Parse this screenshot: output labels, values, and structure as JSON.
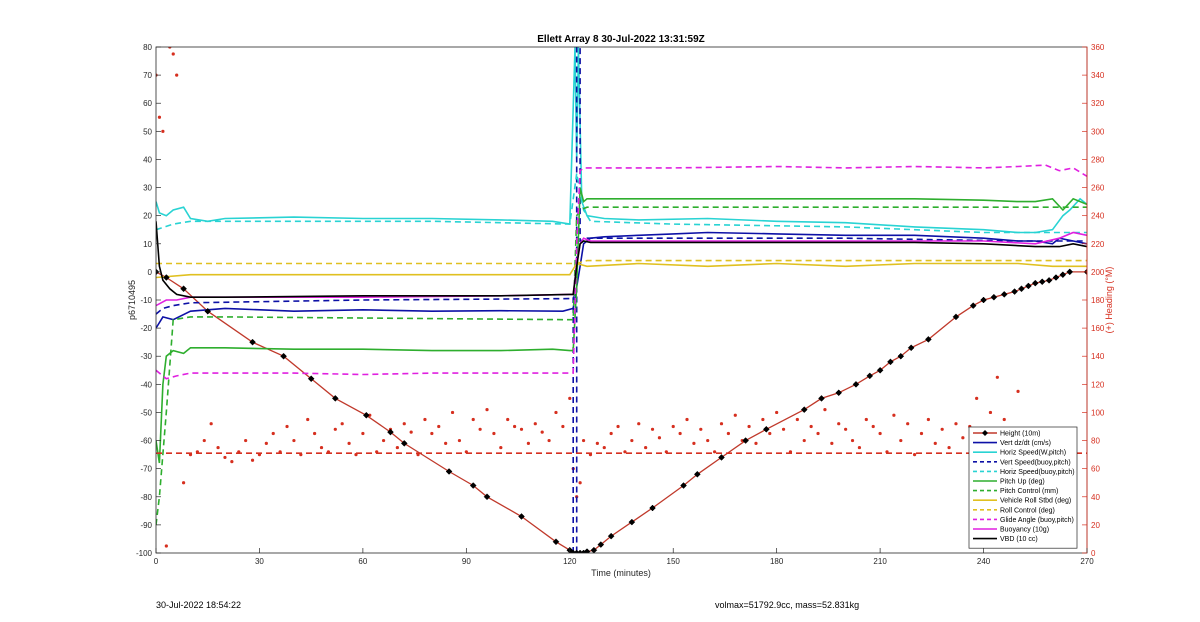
{
  "chart_data": {
    "type": "line",
    "title": "Ellett Array 8 30-Jul-2022 13:31:59Z",
    "xlabel": "Time (minutes)",
    "ylabel": "p6710495",
    "ylabel_right": "(+) Heading (°M)",
    "xlim": [
      0,
      270
    ],
    "ylim": [
      -100,
      80
    ],
    "ylim_right": [
      0,
      360
    ],
    "x_ticks": [
      0,
      30,
      60,
      90,
      120,
      150,
      180,
      210,
      240,
      270
    ],
    "y_ticks": [
      -100,
      -90,
      -80,
      -70,
      -60,
      -50,
      -40,
      -30,
      -20,
      -10,
      0,
      10,
      20,
      30,
      40,
      50,
      60,
      70,
      80
    ],
    "y_ticks_right": [
      0,
      20,
      40,
      60,
      80,
      100,
      120,
      140,
      160,
      180,
      200,
      220,
      240,
      260,
      280,
      300,
      320,
      340,
      360
    ],
    "legend_placement": "bottom-right",
    "series": [
      {
        "name": "Height (10m)",
        "color": "#c0392b",
        "style": "solid",
        "x": [
          0,
          3,
          8,
          15,
          28,
          37,
          45,
          52,
          61,
          68,
          72,
          85,
          92,
          96,
          106,
          116,
          120,
          121,
          122,
          123,
          124,
          125,
          127,
          129,
          132,
          138,
          144,
          153,
          157,
          164,
          171,
          177,
          188,
          193,
          198,
          203,
          207,
          210,
          213,
          216,
          219,
          224,
          232,
          237,
          240,
          243,
          246,
          249,
          251,
          253,
          255,
          257,
          259,
          261,
          263,
          265,
          270
        ],
        "y": [
          0,
          -2,
          -6,
          -14,
          -25,
          -30,
          -38,
          -45,
          -51,
          -57,
          -61,
          -71,
          -76,
          -80,
          -87,
          -96,
          -99,
          -100,
          -100,
          -100,
          -100,
          -99.5,
          -99,
          -97,
          -94,
          -89,
          -84,
          -76,
          -72,
          -66,
          -60,
          -56,
          -49,
          -45,
          -43,
          -40,
          -37,
          -35,
          -32,
          -30,
          -27,
          -24,
          -16,
          -12,
          -10,
          -9,
          -8,
          -7,
          -6,
          -5,
          -4,
          -3.5,
          -3,
          -2,
          -1,
          0,
          0
        ]
      },
      {
        "name": "Vert dz/dt (cm/s)",
        "color": "#0d11a6",
        "style": "solid",
        "x": [
          0,
          2,
          5,
          10,
          20,
          40,
          60,
          80,
          100,
          118,
          121,
          123,
          124,
          126,
          130,
          140,
          150,
          160,
          180,
          200,
          220,
          240,
          250,
          255,
          260,
          262,
          266,
          270
        ],
        "y": [
          -20,
          -16,
          -17,
          -14,
          -13,
          -14,
          -13.5,
          -14,
          -13.8,
          -14,
          -13,
          2,
          10,
          12,
          12.5,
          13,
          13.5,
          14,
          13.5,
          13,
          13,
          12,
          11,
          11,
          10,
          12,
          11,
          10
        ]
      },
      {
        "name": "Horiz Speed(W,pitch)",
        "color": "#29d3d3",
        "style": "solid",
        "x": [
          0,
          1,
          3,
          5,
          8,
          10,
          15,
          20,
          40,
          60,
          80,
          100,
          115,
          120,
          121.5,
          122,
          122.5,
          123.5,
          125,
          130,
          140,
          160,
          180,
          200,
          220,
          240,
          250,
          255,
          260,
          263,
          265,
          268,
          270
        ],
        "y": [
          25,
          21,
          20,
          22,
          23,
          19,
          18,
          19,
          19.5,
          19,
          19,
          18.5,
          18,
          17,
          80,
          40,
          80,
          25,
          20,
          19,
          18.5,
          19,
          18,
          17.5,
          16,
          15,
          14,
          14,
          15,
          20,
          22,
          26,
          24
        ]
      },
      {
        "name": "Vert Speed(buoy,pitch)",
        "color": "#0d11a6",
        "style": "dashed",
        "x": [
          0,
          2,
          5,
          10,
          60,
          120,
          121,
          121,
          122,
          122,
          123,
          123,
          125,
          150,
          200,
          250,
          270
        ],
        "y": [
          -15,
          -13,
          -12,
          -11,
          -10,
          -9.5,
          -9,
          -100,
          -100,
          80,
          80,
          11,
          12,
          12,
          12,
          11,
          11
        ]
      },
      {
        "name": "Horiz Speed(buoy,pitch)",
        "color": "#29d3d3",
        "style": "dashed",
        "x": [
          0,
          5,
          10,
          40,
          80,
          120,
          122,
          124,
          126,
          150,
          200,
          240,
          260,
          270
        ],
        "y": [
          15,
          17,
          18,
          18,
          18,
          17,
          35,
          22,
          18,
          17,
          16,
          14,
          14,
          14
        ]
      },
      {
        "name": "Pitch Up (deg)",
        "color": "#2eae2e",
        "style": "solid",
        "x": [
          0,
          1,
          2,
          3,
          5,
          8,
          10,
          20,
          40,
          60,
          80,
          100,
          115,
          120,
          121,
          122,
          123,
          124,
          125,
          140,
          160,
          180,
          200,
          220,
          240,
          250,
          255,
          260,
          263,
          266,
          270
        ],
        "y": [
          -60,
          -68,
          -40,
          -30,
          -28,
          -29,
          -27,
          -27,
          -27.5,
          -27.5,
          -28,
          -28,
          -27.5,
          -28,
          -28,
          -5,
          30,
          25,
          26,
          26,
          26,
          26,
          26,
          26,
          25.5,
          25,
          25,
          26,
          22,
          26,
          24
        ]
      },
      {
        "name": "Pitch Control (mm)",
        "color": "#2eae2e",
        "style": "dashed",
        "x": [
          0,
          1,
          3,
          5,
          10,
          20,
          120,
          121,
          122,
          123,
          125,
          270
        ],
        "y": [
          -90,
          -80,
          -50,
          -17,
          -16,
          -16,
          -17,
          -17,
          20,
          22,
          23,
          23
        ]
      },
      {
        "name": "Vehicle Roll Stbd (deg)",
        "color": "#e0c020",
        "style": "solid",
        "x": [
          0,
          10,
          20,
          40,
          60,
          80,
          100,
          120,
          122,
          125,
          140,
          160,
          180,
          200,
          220,
          240,
          250,
          260,
          270
        ],
        "y": [
          -2,
          -1,
          -1,
          -1,
          -1,
          -1,
          -1,
          -1,
          3,
          2,
          3,
          2,
          3,
          2,
          3,
          3,
          3,
          2,
          2
        ]
      },
      {
        "name": "Roll Control (deg)",
        "color": "#e0c020",
        "style": "dashed",
        "x": [
          0,
          5,
          10,
          20,
          60,
          100,
          120,
          122,
          125,
          180,
          240,
          250,
          260,
          270
        ],
        "y": [
          3,
          3,
          3,
          3,
          3,
          3,
          3,
          3,
          4,
          4,
          4,
          4,
          4,
          4
        ]
      },
      {
        "name": "Glide Angle (buoy,pitch)",
        "color": "#e020e0",
        "style": "dashed",
        "x": [
          0,
          3,
          6,
          10,
          20,
          40,
          60,
          80,
          100,
          115,
          120,
          121,
          122,
          123,
          124,
          130,
          150,
          180,
          200,
          220,
          240,
          250,
          258,
          262,
          266,
          270
        ],
        "y": [
          -35,
          -38,
          -37,
          -36,
          -36,
          -36,
          -36.5,
          -36,
          -36,
          -36,
          -36,
          -36,
          10,
          36,
          37,
          37,
          37,
          37.5,
          37,
          37.5,
          37,
          37.5,
          38,
          36,
          37,
          34
        ]
      },
      {
        "name": "Buoyancy (10g)",
        "color": "#e020e0",
        "style": "solid",
        "x": [
          0,
          3,
          6,
          10,
          20,
          60,
          100,
          120,
          121,
          122,
          123,
          124,
          126,
          150,
          180,
          220,
          240,
          255,
          262,
          266,
          270
        ],
        "y": [
          -12,
          -10,
          -10,
          -9,
          -9,
          -9,
          -8.5,
          -8,
          -8,
          3,
          10,
          12,
          11,
          11,
          11,
          11,
          11,
          10,
          12,
          14,
          13
        ]
      },
      {
        "name": "VBD (10 cc)",
        "color": "#000000",
        "style": "solid",
        "x": [
          0,
          1,
          2,
          4,
          6,
          10,
          20,
          60,
          100,
          120,
          121,
          122,
          123,
          124,
          126,
          150,
          180,
          220,
          240,
          255,
          262,
          266,
          270
        ],
        "y": [
          18,
          2,
          -3,
          -6,
          -8,
          -9,
          -9,
          -8.5,
          -8.5,
          -8,
          -8,
          2,
          10,
          11,
          10.5,
          10.5,
          10.5,
          10.5,
          10,
          9,
          9,
          10,
          9
        ]
      },
      {
        "name": "",
        "color": "#d62f1f",
        "style": "dashed",
        "axis": "right",
        "x": [
          0,
          270
        ],
        "y": [
          71,
          71
        ]
      }
    ],
    "heading_points": {
      "color": "#d62f1f",
      "axis": "right",
      "x": [
        0,
        1,
        2,
        3,
        4,
        5,
        6,
        8,
        10,
        12,
        14,
        16,
        18,
        20,
        22,
        24,
        26,
        28,
        30,
        32,
        34,
        36,
        38,
        40,
        42,
        44,
        46,
        48,
        50,
        52,
        54,
        56,
        58,
        60,
        62,
        64,
        66,
        68,
        70,
        72,
        74,
        76,
        78,
        80,
        82,
        84,
        86,
        88,
        90,
        92,
        94,
        96,
        98,
        100,
        102,
        104,
        106,
        108,
        110,
        112,
        114,
        116,
        118,
        120,
        121,
        122,
        123,
        124,
        126,
        128,
        130,
        132,
        134,
        136,
        138,
        140,
        142,
        144,
        146,
        148,
        150,
        152,
        154,
        156,
        158,
        160,
        162,
        164,
        166,
        168,
        170,
        172,
        174,
        176,
        178,
        180,
        182,
        184,
        186,
        188,
        190,
        192,
        194,
        196,
        198,
        200,
        202,
        204,
        206,
        208,
        210,
        212,
        214,
        216,
        218,
        220,
        222,
        224,
        226,
        228,
        230,
        232,
        234,
        236,
        238,
        240,
        242,
        244,
        246,
        248,
        250
      ],
      "y": [
        340,
        310,
        300,
        5,
        360,
        355,
        340,
        50,
        70,
        72,
        80,
        92,
        75,
        68,
        65,
        72,
        80,
        66,
        70,
        78,
        85,
        72,
        90,
        80,
        70,
        95,
        85,
        75,
        72,
        88,
        92,
        78,
        70,
        85,
        98,
        72,
        80,
        88,
        75,
        92,
        86,
        70,
        95,
        85,
        90,
        78,
        100,
        80,
        72,
        95,
        88,
        102,
        85,
        75,
        95,
        90,
        88,
        78,
        92,
        86,
        80,
        100,
        90,
        110,
        60,
        40,
        50,
        80,
        70,
        78,
        75,
        85,
        90,
        72,
        80,
        92,
        75,
        88,
        82,
        72,
        90,
        85,
        95,
        78,
        88,
        80,
        72,
        92,
        85,
        98,
        80,
        90,
        78,
        95,
        85,
        100,
        88,
        72,
        95,
        80,
        90,
        85,
        102,
        78,
        92,
        88,
        80,
        75,
        95,
        90,
        85,
        72,
        98,
        80,
        92,
        70,
        85,
        95,
        78,
        88,
        75,
        92,
        82,
        90,
        110,
        80,
        100,
        125,
        95,
        85,
        115
      ]
    }
  },
  "footer": {
    "left": "30-Jul-2022 18:54:22",
    "right": "volmax=51792.9cc, mass=52.831kg"
  }
}
